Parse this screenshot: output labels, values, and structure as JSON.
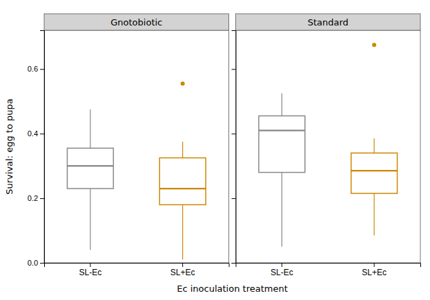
{
  "chart_data": {
    "type": "box",
    "ylabel": "Survival: egg to pupa",
    "xlabel": "Ec inoculation treatment",
    "categories": [
      "SL-Ec",
      "SL+Ec"
    ],
    "colors": [
      "#888888",
      "#CC8800"
    ],
    "ylim": [
      0.0,
      0.72
    ],
    "yticks": [
      {
        "value": 0.0,
        "label": "0.0"
      },
      0.2,
      0.4,
      0.6
    ],
    "grid": false,
    "panels": [
      {
        "title": "Gnotobiotic",
        "boxes": [
          {
            "q1": 0.23,
            "median": 0.3,
            "q3": 0.355,
            "whisker_low": 0.04,
            "whisker_high": 0.475,
            "outliers": []
          },
          {
            "q1": 0.18,
            "median": 0.23,
            "q3": 0.325,
            "whisker_low": 0.01,
            "whisker_high": 0.375,
            "outliers": [
              0.555
            ]
          }
        ]
      },
      {
        "title": "Standard",
        "boxes": [
          {
            "q1": 0.28,
            "median": 0.41,
            "q3": 0.455,
            "whisker_low": 0.05,
            "whisker_high": 0.525,
            "outliers": []
          },
          {
            "q1": 0.215,
            "median": 0.285,
            "q3": 0.34,
            "whisker_low": 0.085,
            "whisker_high": 0.385,
            "outliers": [
              0.675
            ]
          }
        ]
      }
    ]
  }
}
